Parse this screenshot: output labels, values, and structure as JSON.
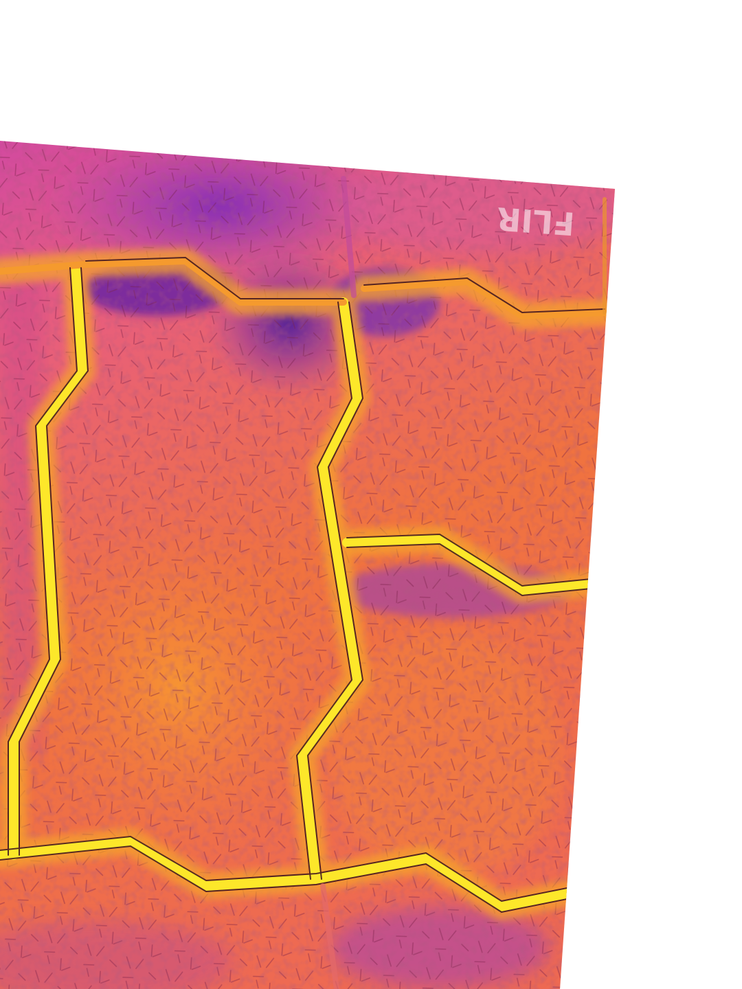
{
  "image": {
    "kind": "thermal photo of interlocking paving stones",
    "watermark_text": "FLIR"
  },
  "palette": {
    "background": "#ffffff",
    "cold": "#6a1fb0",
    "cool": "#a63cc8",
    "mid": "#e0508a",
    "warm": "#f0733f",
    "hot": "#f7a52a",
    "hottest": "#fde72a",
    "texture_dark": "#6b1e3c"
  }
}
